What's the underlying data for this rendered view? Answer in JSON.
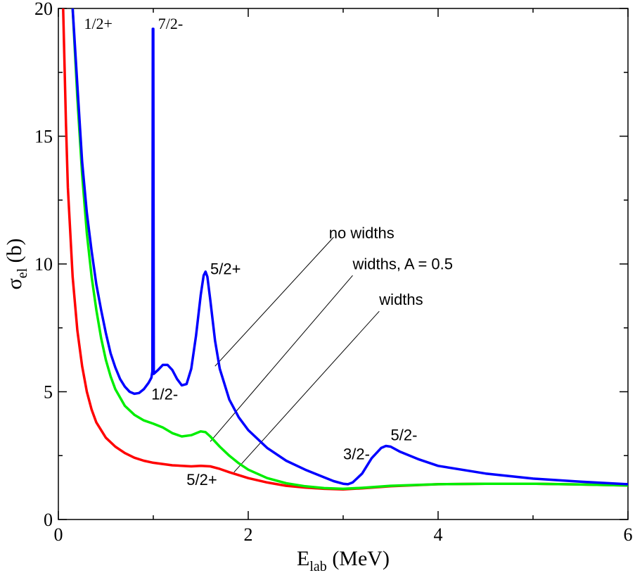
{
  "chart_data": {
    "type": "line",
    "title": "",
    "xlabel_main": "E",
    "xlabel_sub": "lab",
    "xlabel_unit": " (MeV)",
    "ylabel_main": "σ",
    "ylabel_sub": "el",
    "ylabel_unit": " (b)",
    "xlim": [
      0,
      6
    ],
    "ylim": [
      0,
      20
    ],
    "x_ticks": [
      0,
      2,
      4,
      6
    ],
    "y_ticks": [
      0,
      5,
      10,
      15,
      20
    ],
    "x_tick_labels": [
      "0",
      "2",
      "4",
      "6"
    ],
    "y_tick_labels": [
      "0",
      "5",
      "10",
      "15",
      "20"
    ],
    "grid": false,
    "series": [
      {
        "name": "no widths",
        "color": "#0000ff",
        "points": [
          [
            0.15,
            20
          ],
          [
            0.2,
            17
          ],
          [
            0.25,
            14
          ],
          [
            0.3,
            12
          ],
          [
            0.35,
            10.5
          ],
          [
            0.4,
            9.2
          ],
          [
            0.45,
            8.2
          ],
          [
            0.5,
            7.3
          ],
          [
            0.55,
            6.5
          ],
          [
            0.6,
            5.95
          ],
          [
            0.65,
            5.5
          ],
          [
            0.7,
            5.2
          ],
          [
            0.75,
            5.0
          ],
          [
            0.8,
            4.92
          ],
          [
            0.85,
            4.95
          ],
          [
            0.9,
            5.1
          ],
          [
            0.95,
            5.35
          ],
          [
            0.98,
            5.55
          ],
          [
            0.99,
            5.8
          ],
          [
            0.995,
            19.2
          ],
          [
            1.0,
            19.2
          ],
          [
            1.005,
            5.7
          ],
          [
            1.05,
            5.85
          ],
          [
            1.1,
            6.05
          ],
          [
            1.15,
            6.05
          ],
          [
            1.2,
            5.85
          ],
          [
            1.25,
            5.5
          ],
          [
            1.3,
            5.25
          ],
          [
            1.35,
            5.3
          ],
          [
            1.4,
            5.9
          ],
          [
            1.45,
            7.2
          ],
          [
            1.5,
            8.8
          ],
          [
            1.53,
            9.55
          ],
          [
            1.55,
            9.7
          ],
          [
            1.57,
            9.5
          ],
          [
            1.6,
            8.6
          ],
          [
            1.65,
            7.0
          ],
          [
            1.7,
            5.9
          ],
          [
            1.8,
            4.7
          ],
          [
            1.9,
            4.0
          ],
          [
            2.0,
            3.5
          ],
          [
            2.2,
            2.8
          ],
          [
            2.4,
            2.3
          ],
          [
            2.6,
            1.95
          ],
          [
            2.8,
            1.65
          ],
          [
            2.9,
            1.5
          ],
          [
            3.0,
            1.4
          ],
          [
            3.05,
            1.38
          ],
          [
            3.1,
            1.45
          ],
          [
            3.2,
            1.8
          ],
          [
            3.3,
            2.4
          ],
          [
            3.4,
            2.8
          ],
          [
            3.45,
            2.88
          ],
          [
            3.5,
            2.85
          ],
          [
            3.6,
            2.65
          ],
          [
            3.8,
            2.35
          ],
          [
            4.0,
            2.1
          ],
          [
            4.5,
            1.8
          ],
          [
            5.0,
            1.6
          ],
          [
            5.5,
            1.48
          ],
          [
            6.0,
            1.38
          ]
        ]
      },
      {
        "name": "widths,  A = 0.5",
        "color": "#00ee00",
        "points": [
          [
            0.15,
            20
          ],
          [
            0.2,
            16.5
          ],
          [
            0.25,
            13.5
          ],
          [
            0.3,
            11.2
          ],
          [
            0.35,
            9.5
          ],
          [
            0.4,
            8.2
          ],
          [
            0.45,
            7.1
          ],
          [
            0.5,
            6.25
          ],
          [
            0.55,
            5.6
          ],
          [
            0.6,
            5.1
          ],
          [
            0.7,
            4.45
          ],
          [
            0.8,
            4.1
          ],
          [
            0.9,
            3.88
          ],
          [
            1.0,
            3.75
          ],
          [
            1.1,
            3.6
          ],
          [
            1.2,
            3.38
          ],
          [
            1.3,
            3.25
          ],
          [
            1.4,
            3.3
          ],
          [
            1.5,
            3.45
          ],
          [
            1.55,
            3.42
          ],
          [
            1.6,
            3.25
          ],
          [
            1.7,
            2.85
          ],
          [
            1.8,
            2.5
          ],
          [
            1.9,
            2.2
          ],
          [
            2.0,
            1.95
          ],
          [
            2.2,
            1.62
          ],
          [
            2.4,
            1.42
          ],
          [
            2.6,
            1.3
          ],
          [
            2.8,
            1.23
          ],
          [
            3.0,
            1.2
          ],
          [
            3.2,
            1.24
          ],
          [
            3.5,
            1.32
          ],
          [
            4.0,
            1.38
          ],
          [
            4.5,
            1.4
          ],
          [
            5.0,
            1.4
          ],
          [
            5.5,
            1.37
          ],
          [
            6.0,
            1.33
          ]
        ]
      },
      {
        "name": "widths",
        "color": "#ff0000",
        "points": [
          [
            0.05,
            20
          ],
          [
            0.08,
            15.5
          ],
          [
            0.1,
            13
          ],
          [
            0.15,
            9.5
          ],
          [
            0.2,
            7.4
          ],
          [
            0.25,
            6.0
          ],
          [
            0.3,
            5.0
          ],
          [
            0.35,
            4.3
          ],
          [
            0.4,
            3.8
          ],
          [
            0.5,
            3.2
          ],
          [
            0.6,
            2.85
          ],
          [
            0.7,
            2.6
          ],
          [
            0.8,
            2.42
          ],
          [
            0.9,
            2.3
          ],
          [
            1.0,
            2.22
          ],
          [
            1.2,
            2.12
          ],
          [
            1.4,
            2.08
          ],
          [
            1.5,
            2.1
          ],
          [
            1.6,
            2.08
          ],
          [
            1.7,
            1.98
          ],
          [
            1.8,
            1.85
          ],
          [
            2.0,
            1.62
          ],
          [
            2.2,
            1.45
          ],
          [
            2.4,
            1.32
          ],
          [
            2.6,
            1.25
          ],
          [
            2.8,
            1.2
          ],
          [
            3.0,
            1.18
          ],
          [
            3.2,
            1.22
          ],
          [
            3.5,
            1.3
          ],
          [
            4.0,
            1.38
          ],
          [
            4.5,
            1.4
          ],
          [
            5.0,
            1.4
          ],
          [
            5.5,
            1.37
          ],
          [
            6.0,
            1.33
          ]
        ]
      }
    ],
    "annotations": [
      {
        "text": "1/2+",
        "x": 0.27,
        "y": 19.2,
        "font": "serif"
      },
      {
        "text": "7/2-",
        "x": 1.05,
        "y": 19.2,
        "font": "serif"
      },
      {
        "text": "5/2+",
        "x": 1.6,
        "y": 9.6,
        "font": "sans"
      },
      {
        "text": "1/2-",
        "x": 0.98,
        "y": 4.7,
        "font": "sans"
      },
      {
        "text": "5/2+",
        "x": 1.35,
        "y": 1.35,
        "font": "sans"
      },
      {
        "text": "3/2-",
        "x": 3.0,
        "y": 2.35,
        "font": "sans"
      },
      {
        "text": "5/2-",
        "x": 3.5,
        "y": 3.1,
        "font": "sans"
      },
      {
        "text": "no widths",
        "x": 2.85,
        "y": 11.0,
        "font": "sans"
      },
      {
        "text": "widths,  A = 0.5",
        "x": 3.1,
        "y": 9.8,
        "font": "sans"
      },
      {
        "text": "widths",
        "x": 3.38,
        "y": 8.4,
        "font": "sans"
      }
    ],
    "leader_lines": [
      {
        "from": [
          1.65,
          6.0
        ],
        "to": [
          2.9,
          11.05
        ]
      },
      {
        "from": [
          1.6,
          3.05
        ],
        "to": [
          3.1,
          9.55
        ]
      },
      {
        "from": [
          1.85,
          1.85
        ],
        "to": [
          3.38,
          8.15
        ]
      }
    ]
  }
}
